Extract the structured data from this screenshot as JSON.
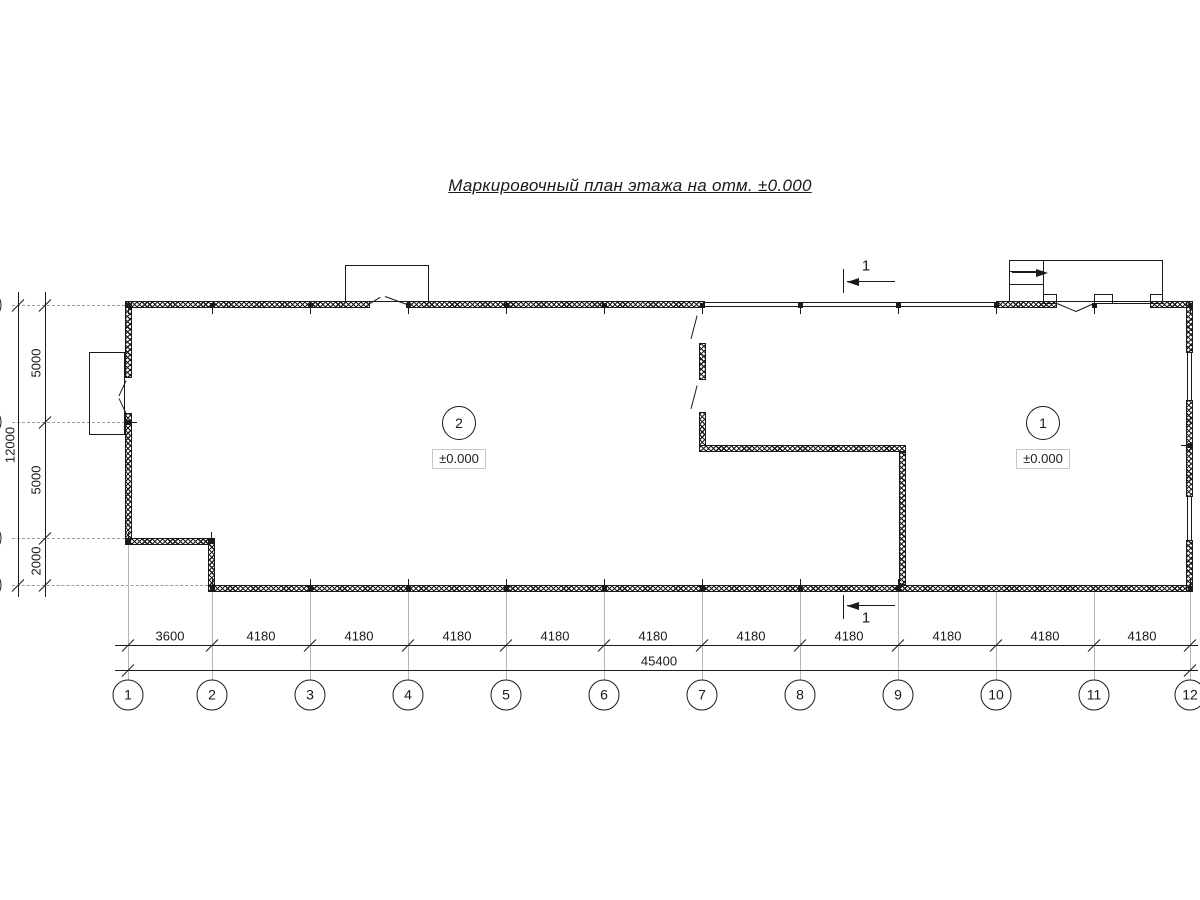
{
  "title": "Маркировочный план этажа на отм. ±0.000",
  "axes": {
    "numbers": [
      "1",
      "2",
      "3",
      "4",
      "5",
      "6",
      "7",
      "8",
      "9",
      "10",
      "11",
      "12"
    ]
  },
  "dimensions": {
    "bottom_segments": [
      "3600",
      "4180",
      "4180",
      "4180",
      "4180",
      "4180",
      "4180",
      "4180",
      "4180",
      "4180",
      "4180"
    ],
    "bottom_total": "45400",
    "left_segments": [
      "5000",
      "5000",
      "2000"
    ],
    "left_total": "12000"
  },
  "rooms": [
    {
      "number": "2",
      "elevation": "±0.000"
    },
    {
      "number": "1",
      "elevation": "±0.000"
    }
  ],
  "section_marks": [
    {
      "label": "1"
    },
    {
      "label": "1"
    }
  ],
  "colors": {
    "line": "#1a1a1a",
    "grid": "#9c9c9c",
    "elevation_box_border": "#c8c8c8"
  }
}
